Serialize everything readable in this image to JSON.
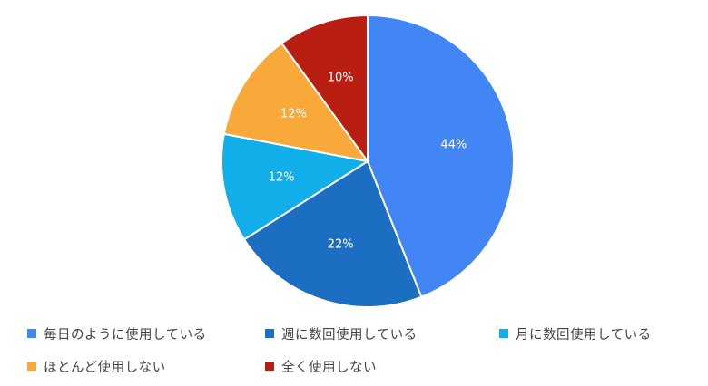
{
  "chart_data": {
    "type": "pie",
    "categories": [
      "毎日のように使用している",
      "週に数回使用している",
      "月に数回使用している",
      "ほとんど使用しない",
      "全く使用しない"
    ],
    "values": [
      44,
      22,
      12,
      12,
      10
    ],
    "data_labels": [
      "44%",
      "22%",
      "12%",
      "12%",
      "10%"
    ],
    "colors": [
      "#4285f4",
      "#1b6ec2",
      "#12aee9",
      "#f9a93a",
      "#b81f12"
    ],
    "legend_position": "bottom",
    "start_angle": "top",
    "direction": "clockwise"
  }
}
